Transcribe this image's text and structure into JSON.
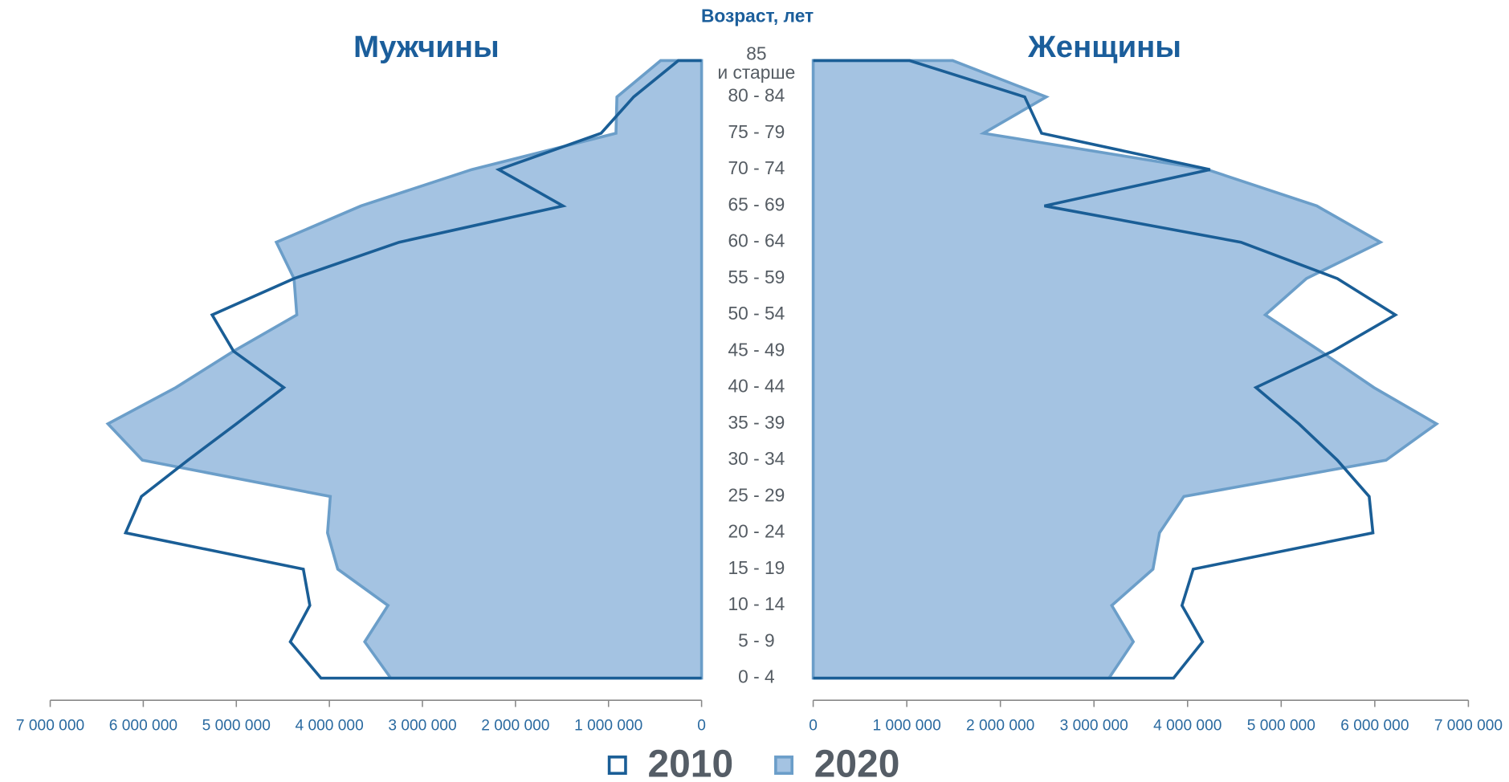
{
  "chart_data": {
    "type": "pyramid",
    "title": "Возраст, лет",
    "left_title": "Мужчины",
    "right_title": "Женщины",
    "categories": [
      "0 - 4",
      "5 - 9",
      "10 - 14",
      "15 - 19",
      "20 - 24",
      "25 - 29",
      "30 - 34",
      "35 - 39",
      "40 - 44",
      "45 - 49",
      "50 - 54",
      "55 - 59",
      "60 - 64",
      "65 - 69",
      "70 - 74",
      "75 - 79",
      "80 - 84",
      "85\nи старше"
    ],
    "series": [
      {
        "name": "2010",
        "color": "#1a5e96",
        "filled": false,
        "men": [
          4090000,
          4420000,
          4210000,
          4280000,
          6190000,
          6020000,
          5520000,
          5000000,
          4490000,
          5030000,
          5260000,
          4380000,
          3250000,
          1490000,
          2180000,
          1080000,
          730000,
          250000
        ],
        "women": [
          3850000,
          4160000,
          3940000,
          4060000,
          5980000,
          5940000,
          5600000,
          5190000,
          4730000,
          5550000,
          6220000,
          5600000,
          4570000,
          2470000,
          4240000,
          2440000,
          2260000,
          1030000
        ]
      },
      {
        "name": "2020",
        "color": "#6b9ec9",
        "fill": "#a4c3e2",
        "filled": true,
        "men": [
          3340000,
          3620000,
          3370000,
          3910000,
          4020000,
          3990000,
          6010000,
          6380000,
          5650000,
          5030000,
          4350000,
          4380000,
          4570000,
          3660000,
          2470000,
          920000,
          910000,
          440000
        ],
        "women": [
          3160000,
          3420000,
          3190000,
          3630000,
          3700000,
          3960000,
          6120000,
          6660000,
          5990000,
          5420000,
          4830000,
          5270000,
          6060000,
          5380000,
          4210000,
          1820000,
          2490000,
          1490000
        ]
      }
    ],
    "xlim": [
      0,
      7000000
    ],
    "xticks": [
      0,
      {
        "value": 1000000,
        "label": "1 000 000"
      },
      {
        "value": 2000000,
        "label": "2 000 000"
      },
      {
        "value": 3000000,
        "label": "3 000 000"
      },
      {
        "value": 4000000,
        "label": "4 000 000"
      },
      {
        "value": 5000000,
        "label": "5 000 000"
      },
      {
        "value": 6000000,
        "label": "6 000 000"
      },
      {
        "value": 7000000,
        "label": "7 000 000"
      }
    ]
  }
}
